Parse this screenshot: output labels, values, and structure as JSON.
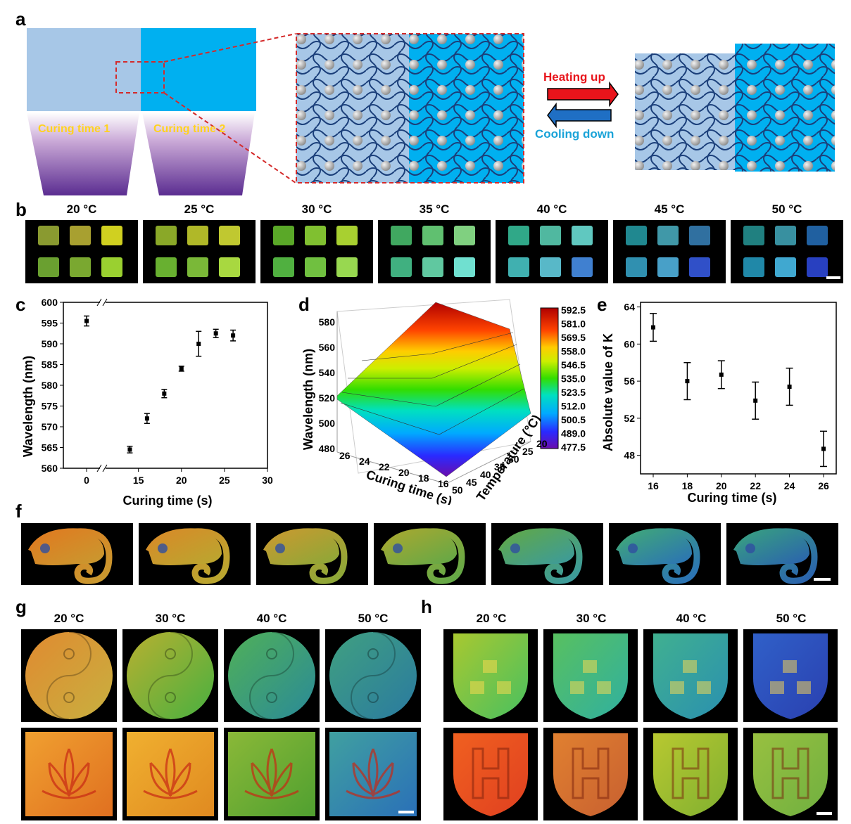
{
  "panels": {
    "a": "a",
    "b": "b",
    "c": "c",
    "d": "d",
    "e": "e",
    "f": "f",
    "g": "g",
    "h": "h"
  },
  "panel_a": {
    "curing1": "Curing time 1",
    "curing2": "Curing time 2",
    "heating": "Heating up",
    "cooling": "Cooling down",
    "colors": {
      "light": "#a7c7e7",
      "cyan": "#00b0f0",
      "heat": "#e8141b",
      "cool": "#1f6fc4"
    }
  },
  "temperatures_b": [
    "20 °C",
    "25 °C",
    "30 °C",
    "35 °C",
    "40 °C",
    "45 °C",
    "50 °C"
  ],
  "temperatures_gh": [
    "20 °C",
    "30 °C",
    "40 °C",
    "50 °C"
  ],
  "chart_data": [
    {
      "panel": "c",
      "type": "scatter",
      "xlabel": "Curing time (s)",
      "ylabel": "Wavelength (nm)",
      "xticks": [
        "0",
        "15",
        "20",
        "25",
        "30"
      ],
      "yticks": [
        "560",
        "565",
        "570",
        "575",
        "580",
        "585",
        "590",
        "595",
        "600"
      ],
      "ylim": [
        560,
        600
      ],
      "x": [
        0,
        14,
        16,
        18,
        20,
        22,
        24,
        26
      ],
      "y": [
        595.5,
        564.5,
        572,
        578,
        584,
        590,
        592.5,
        592
      ],
      "err": [
        1.2,
        0.8,
        1.2,
        1.0,
        0.6,
        3.0,
        1.0,
        1.3
      ]
    },
    {
      "panel": "d",
      "type": "surface",
      "zlabel": "Wavelength (nm)",
      "xlabel": "Curing time (s)",
      "ylabel": "Temperature (°C)",
      "zticks": [
        "480",
        "500",
        "520",
        "540",
        "560",
        "580"
      ],
      "xticks": [
        "16",
        "18",
        "20",
        "22",
        "24",
        "26"
      ],
      "yticks": [
        "20",
        "25",
        "30",
        "35",
        "40",
        "45",
        "50"
      ],
      "colorbar": [
        "592.5",
        "581.0",
        "569.5",
        "558.0",
        "546.5",
        "535.0",
        "523.5",
        "512.0",
        "500.5",
        "489.0",
        "477.5"
      ]
    },
    {
      "panel": "e",
      "type": "scatter",
      "xlabel": "Curing time (s)",
      "ylabel": "Absolute value of K",
      "xticks": [
        "16",
        "18",
        "20",
        "22",
        "24",
        "26"
      ],
      "yticks": [
        "48",
        "52",
        "56",
        "60",
        "64"
      ],
      "ylim": [
        46,
        64.5
      ],
      "x": [
        16,
        18,
        20,
        22,
        24,
        26
      ],
      "y": [
        61.8,
        56.0,
        56.7,
        53.9,
        55.4,
        48.7
      ],
      "err": [
        1.5,
        2.0,
        1.5,
        2.0,
        2.0,
        1.9
      ]
    }
  ]
}
